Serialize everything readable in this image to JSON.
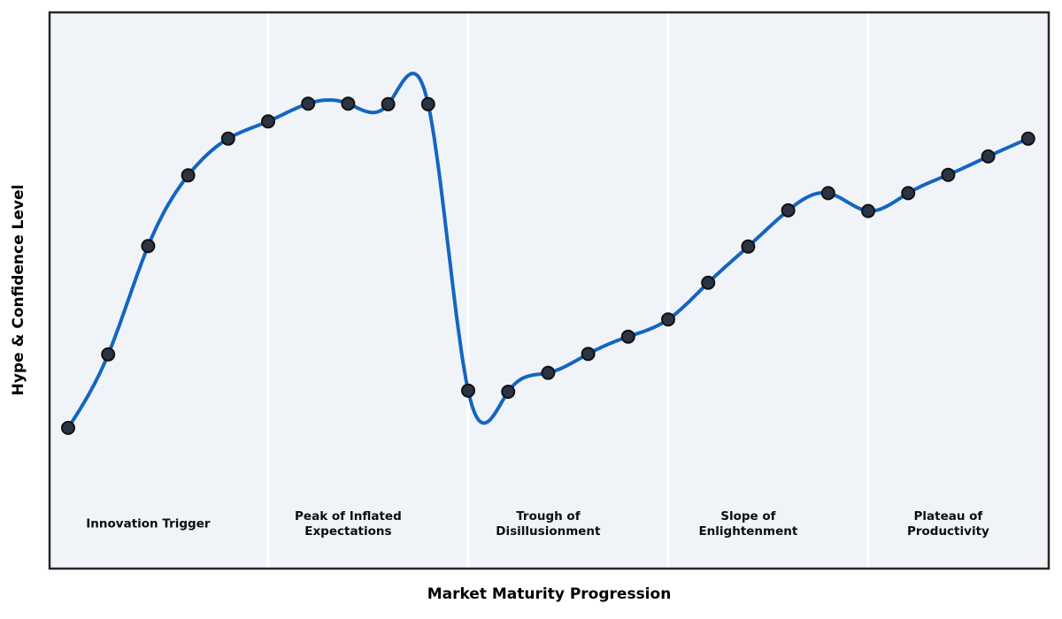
{
  "chart_data": {
    "type": "line",
    "title": "",
    "xlabel": "Market Maturity Progression",
    "ylabel": "Hype & Confidence Level",
    "legend": "none",
    "grid": "off",
    "smoothing": "natural-cubic-spline",
    "marker": "circle",
    "x": [
      1,
      2,
      3,
      4,
      5,
      6,
      7,
      8,
      9,
      10,
      11,
      12,
      13,
      14,
      15,
      16,
      17,
      18,
      19,
      20,
      21,
      22,
      23,
      24,
      25
    ],
    "y": [
      25.3,
      38.5,
      58.0,
      70.7,
      77.3,
      80.4,
      83.6,
      83.6,
      83.5,
      83.5,
      32.0,
      31.8,
      35.2,
      38.6,
      41.7,
      44.8,
      51.4,
      57.9,
      64.4,
      67.5,
      64.3,
      67.5,
      70.8,
      74.1,
      77.3
    ],
    "ylim": [
      0,
      100
    ],
    "xlim": [
      0.5,
      25.5
    ],
    "phase_boundaries_x": [
      6,
      11,
      16,
      21
    ],
    "phases": [
      {
        "center_x": 3,
        "label_lines": [
          "Innovation Trigger"
        ]
      },
      {
        "center_x": 8,
        "label_lines": [
          "Peak of Inflated",
          "Expectations"
        ]
      },
      {
        "center_x": 13,
        "label_lines": [
          "Trough of",
          "Disillusionment"
        ]
      },
      {
        "center_x": 18,
        "label_lines": [
          "Slope of",
          "Enlightenment"
        ]
      },
      {
        "center_x": 23,
        "label_lines": [
          "Plateau of",
          "Productivity"
        ]
      }
    ],
    "colors": {
      "line": "#1565c0",
      "marker_fill": "#2b3442",
      "marker_edge": "#111111",
      "plot_background": "#f0f4f8",
      "frame": "#262626",
      "divider": "#ffffff",
      "label_text": "#0d0d0d"
    }
  }
}
